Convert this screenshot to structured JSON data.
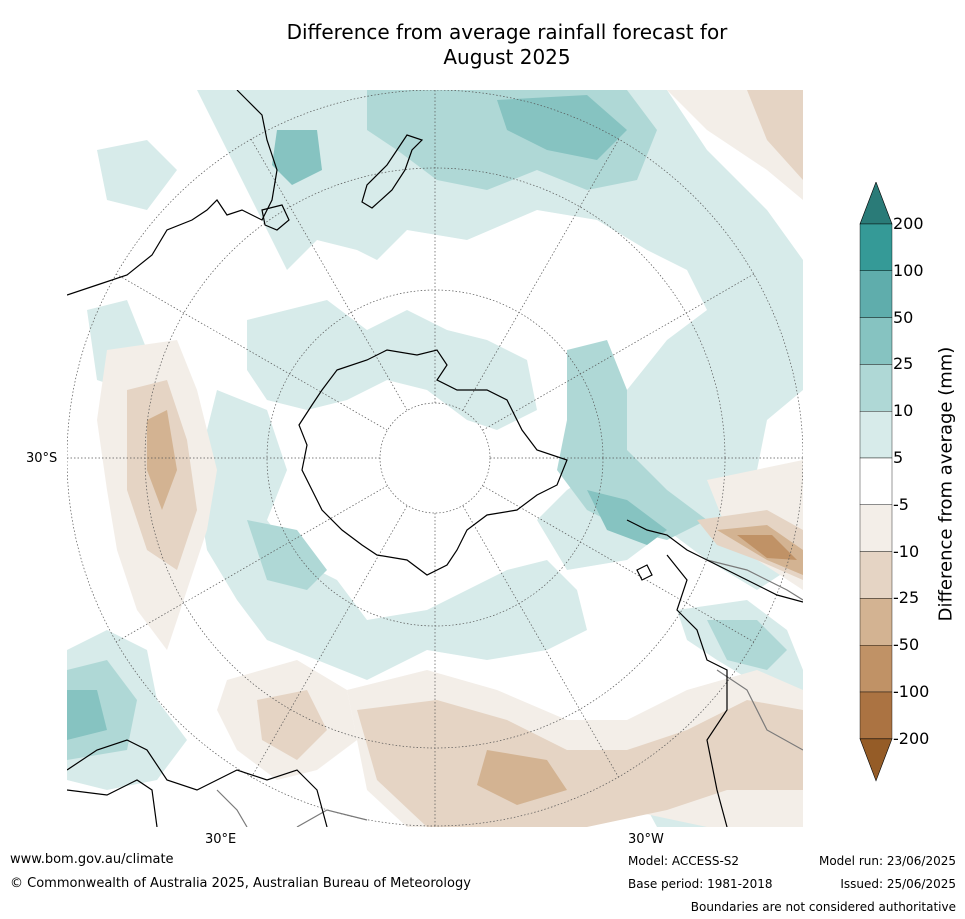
{
  "title": {
    "line1": "Difference from average rainfall forecast for",
    "line2": "August 2025"
  },
  "map": {
    "projection": "south-polar-stereographic",
    "lat_label": "30°S",
    "lon_labels": {
      "east": "30°E",
      "west": "30°W"
    },
    "colors": {
      "coast": "#000000",
      "border": "#7a7a7a",
      "graticule": "#555555"
    }
  },
  "colorbar": {
    "title": "Difference from average (mm)",
    "tick_labels": [
      "200",
      "100",
      "50",
      "25",
      "10",
      "5",
      "-5",
      "-10",
      "-25",
      "-50",
      "-100",
      "-200"
    ],
    "bins": [
      {
        "range": "> 200",
        "color": "#2a7b78"
      },
      {
        "range": "100 to 200",
        "color": "#359a97"
      },
      {
        "range": "50 to 100",
        "color": "#5fadac"
      },
      {
        "range": "25 to 50",
        "color": "#86c3c1"
      },
      {
        "range": "10 to 25",
        "color": "#afd8d6"
      },
      {
        "range": "5 to 10",
        "color": "#d7ebea"
      },
      {
        "range": "-5 to 5",
        "color": "#ffffff"
      },
      {
        "range": "-10 to -5",
        "color": "#f3eee8"
      },
      {
        "range": "-25 to -10",
        "color": "#e5d4c4"
      },
      {
        "range": "-50 to -25",
        "color": "#d3b392"
      },
      {
        "range": "-100 to -50",
        "color": "#c09266"
      },
      {
        "range": "-200 to -100",
        "color": "#ab7342"
      },
      {
        "range": "< -200",
        "color": "#955c27"
      }
    ]
  },
  "footer": {
    "website": "www.bom.gov.au/climate",
    "copyright": "© Commonwealth of Australia 2025, Australian Bureau of Meteorology",
    "model": "Model: ACCESS-S2",
    "base_period": "Base period: 1981-2018",
    "model_run": "Model run: 23/06/2025",
    "issued": "Issued: 25/06/2025",
    "disclaimer": "Boundaries are not considered authoritative"
  }
}
